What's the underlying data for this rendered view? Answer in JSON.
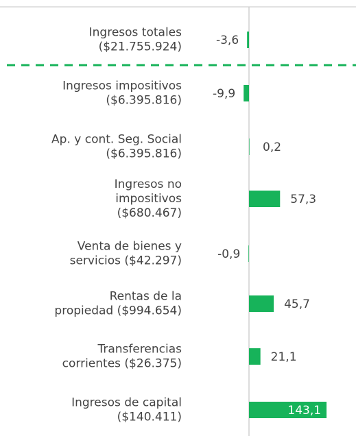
{
  "chart_data": {
    "type": "bar",
    "orientation": "horizontal",
    "categories": [
      [
        "Ingresos totales",
        "($21.755.924)"
      ],
      [
        "Ingresos impositivos",
        "($6.395.816)"
      ],
      [
        "Ap. y cont. Seg. Social",
        "($6.395.816)"
      ],
      [
        "Ingresos no",
        "impositivos",
        "($680.467)"
      ],
      [
        "Venta de bienes y",
        "servicios ($42.297)"
      ],
      [
        "Rentas de la",
        "propiedad ($994.654)"
      ],
      [
        "Transferencias",
        "corrientes ($26.375)"
      ],
      [
        "Ingresos de capital",
        "($140.411)"
      ]
    ],
    "values": [
      -3.6,
      -9.9,
      0.2,
      57.3,
      -0.9,
      45.7,
      21.1,
      143.1
    ],
    "value_labels": [
      "-3,6",
      "-9,9",
      "0,2",
      "57,3",
      "-0,9",
      "45,7",
      "21,1",
      "143,1"
    ],
    "color": "#17b35a"
  }
}
